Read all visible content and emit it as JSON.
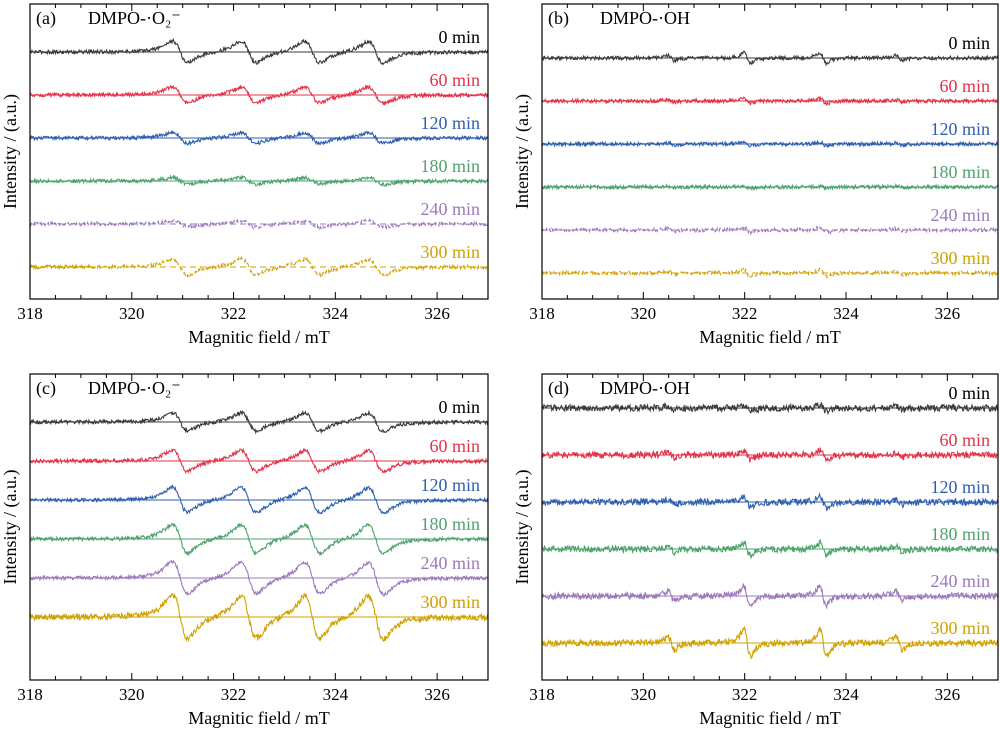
{
  "figure": {
    "colors": [
      "#3a3a3a",
      "#e2334a",
      "#2f5fae",
      "#4ea36d",
      "#9d79bb",
      "#d1a100"
    ]
  },
  "chart_data": [
    {
      "type": "line",
      "panel": "(a)",
      "title": "DMPO-·O₂⁻",
      "xlabel": "Magnitic field / mT",
      "ylabel": "Intensity / (a.u.)",
      "xlim": [
        318,
        327
      ],
      "xticks": [
        "318",
        "320",
        "322",
        "324",
        "326"
      ],
      "signal": "superoxide",
      "series": [
        {
          "name": "0 min",
          "amplitude": 1.0,
          "dashed_from": null
        },
        {
          "name": "60 min",
          "amplitude": 0.75,
          "dashed_from": null
        },
        {
          "name": "120 min",
          "amplitude": 0.5,
          "dashed_from": null
        },
        {
          "name": "180 min",
          "amplitude": 0.3,
          "dashed_from": null
        },
        {
          "name": "240 min",
          "amplitude": 0.3,
          "dashed_from": 318
        },
        {
          "name": "300 min",
          "amplitude": 0.75,
          "dashed_from": 319.2
        }
      ]
    },
    {
      "type": "line",
      "panel": "(b)",
      "title": "DMPO-·OH",
      "xlabel": "Magnitic field / mT",
      "ylabel": "Intensity / (a.u.)",
      "xlim": [
        318,
        327
      ],
      "xticks": [
        "318",
        "320",
        "322",
        "324",
        "326"
      ],
      "signal": "hydroxyl",
      "series": [
        {
          "name": "0 min",
          "amplitude": 0.6,
          "dashed_from": null
        },
        {
          "name": "60 min",
          "amplitude": 0.3,
          "dashed_from": null
        },
        {
          "name": "120 min",
          "amplitude": 0.22,
          "dashed_from": null
        },
        {
          "name": "180 min",
          "amplitude": 0.12,
          "dashed_from": null
        },
        {
          "name": "240 min",
          "amplitude": 0.3,
          "dashed_from": 318
        },
        {
          "name": "300 min",
          "amplitude": 0.4,
          "dashed_from": 318
        }
      ]
    },
    {
      "type": "line",
      "panel": "(c)",
      "title": "DMPO-·O₂⁻",
      "xlabel": "Magnitic field / mT",
      "ylabel": "Intensity / (a.u.)",
      "xlim": [
        318,
        327
      ],
      "xticks": [
        "318",
        "320",
        "322",
        "324",
        "326"
      ],
      "signal": "superoxide",
      "series": [
        {
          "name": "0 min",
          "amplitude": 0.85,
          "dashed_from": null
        },
        {
          "name": "60 min",
          "amplitude": 1.0,
          "dashed_from": null
        },
        {
          "name": "120 min",
          "amplitude": 1.2,
          "dashed_from": null
        },
        {
          "name": "180 min",
          "amplitude": 1.35,
          "dashed_from": null
        },
        {
          "name": "240 min",
          "amplitude": 1.5,
          "dashed_from": null
        },
        {
          "name": "300 min",
          "amplitude": 2.0,
          "dashed_from": null
        }
      ]
    },
    {
      "type": "line",
      "panel": "(d)",
      "title": "DMPO-·OH",
      "xlabel": "Magnitic field / mT",
      "ylabel": "Intensity / (a.u.)",
      "xlim": [
        318,
        327
      ],
      "xticks": [
        "318",
        "320",
        "322",
        "324",
        "326"
      ],
      "signal": "hydroxyl",
      "series": [
        {
          "name": "0 min",
          "amplitude": 0.4,
          "dashed_from": null
        },
        {
          "name": "60 min",
          "amplitude": 0.55,
          "dashed_from": null
        },
        {
          "name": "120 min",
          "amplitude": 0.6,
          "dashed_from": null
        },
        {
          "name": "180 min",
          "amplitude": 0.7,
          "dashed_from": null
        },
        {
          "name": "240 min",
          "amplitude": 1.1,
          "dashed_from": null
        },
        {
          "name": "300 min",
          "amplitude": 1.6,
          "dashed_from": null
        }
      ]
    }
  ]
}
